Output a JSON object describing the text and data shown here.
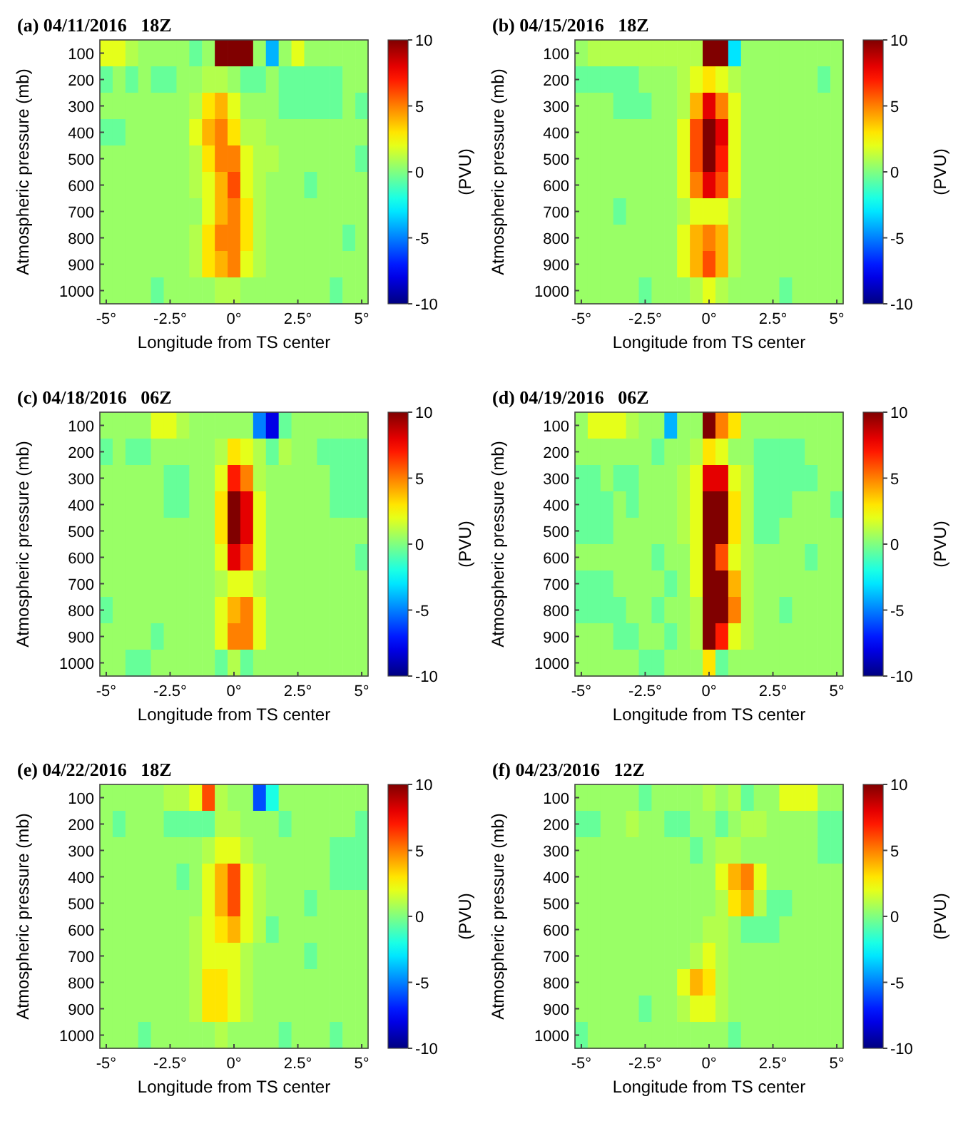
{
  "chart_data": [
    {
      "type": "heatmap",
      "title": "(a) 04/11/2016   18Z",
      "xlabel": "Longitude from TS center",
      "ylabel": "Atmospheric pressure (mb)",
      "clabel": "(PVU)",
      "clim": [
        -10,
        10
      ],
      "cticks": [
        -10,
        -5,
        0,
        5,
        10
      ],
      "categories": [
        "-5°",
        null,
        null,
        null,
        null,
        "-2.5°",
        null,
        null,
        null,
        null,
        "0°",
        null,
        null,
        null,
        null,
        "2.5°",
        null,
        null,
        null,
        null,
        "5°"
      ],
      "y_categories": [
        "100",
        "200",
        "300",
        "400",
        "500",
        "600",
        "700",
        "800",
        "900",
        "1000"
      ],
      "cells": [
        [
          2,
          2,
          1,
          0.5,
          0.5,
          0.5,
          0.5,
          -0.5,
          0.5,
          10,
          10,
          10,
          0.5,
          -4,
          0.5,
          2,
          0.5,
          0.5,
          0.5,
          0.5,
          0.5
        ],
        [
          -0.5,
          0.5,
          -0.5,
          0.5,
          -0.5,
          -0.5,
          0.5,
          0.5,
          1,
          1,
          0.5,
          -0.5,
          -0.5,
          0.5,
          -0.5,
          -0.5,
          -0.5,
          -0.5,
          -0.5,
          0.5,
          0.5
        ],
        [
          0.5,
          0.5,
          0.5,
          0.5,
          0.5,
          0.5,
          0.5,
          1,
          3,
          4,
          2,
          0.5,
          0.5,
          0.5,
          -0.5,
          -0.5,
          -0.5,
          -0.5,
          -0.5,
          0.5,
          -0.5
        ],
        [
          -0.5,
          -0.5,
          0.5,
          0.5,
          0.5,
          0.5,
          0.5,
          2,
          4,
          5,
          3,
          1,
          1,
          0.5,
          0.5,
          0.5,
          0.5,
          0.5,
          0.5,
          0.5,
          0.5
        ],
        [
          0.5,
          0.5,
          0.5,
          0.5,
          0.5,
          0.5,
          0.5,
          1,
          3,
          5,
          5,
          2,
          1,
          1,
          0.5,
          0.5,
          0.5,
          0.5,
          0.5,
          0.5,
          -0.5
        ],
        [
          0.5,
          0.5,
          0.5,
          0.5,
          0.5,
          0.5,
          0.5,
          1,
          2,
          4,
          6,
          2,
          1,
          0.5,
          0.5,
          0.5,
          -0.5,
          0.5,
          0.5,
          0.5,
          0.5
        ],
        [
          0.5,
          0.5,
          0.5,
          0.5,
          0.5,
          0.5,
          0.5,
          0.5,
          2,
          4,
          5,
          3,
          1,
          0.5,
          0.5,
          0.5,
          0.5,
          0.5,
          0.5,
          0.5,
          0.5
        ],
        [
          0.5,
          0.5,
          0.5,
          0.5,
          0.5,
          0.5,
          0.5,
          1,
          3,
          5,
          5,
          3,
          1,
          0.5,
          0.5,
          0.5,
          0.5,
          0.5,
          0.5,
          -0.5,
          0.5
        ],
        [
          0.5,
          0.5,
          0.5,
          0.5,
          0.5,
          0.5,
          0.5,
          1,
          3,
          4,
          5,
          2,
          1,
          0.5,
          0.5,
          0.5,
          0.5,
          0.5,
          0.5,
          0.5,
          0.5
        ],
        [
          0.5,
          0.5,
          0.5,
          0.5,
          -0.5,
          0.5,
          0.5,
          0.5,
          0.5,
          1,
          1,
          0.5,
          0.5,
          0.5,
          0.5,
          0.5,
          0.5,
          0.5,
          -0.5,
          0.5,
          0.5
        ]
      ]
    },
    {
      "type": "heatmap",
      "title": "(b) 04/15/2016   18Z",
      "xlabel": "Longitude from TS center",
      "ylabel": "Atmospheric pressure (mb)",
      "clabel": "(PVU)",
      "clim": [
        -10,
        10
      ],
      "cticks": [
        -10,
        -5,
        0,
        5,
        10
      ],
      "categories": [
        "-5°",
        null,
        null,
        null,
        null,
        "-2.5°",
        null,
        null,
        null,
        null,
        "0°",
        null,
        null,
        null,
        null,
        "2.5°",
        null,
        null,
        null,
        null,
        "5°"
      ],
      "y_categories": [
        "100",
        "200",
        "300",
        "400",
        "500",
        "600",
        "700",
        "800",
        "900",
        "1000"
      ],
      "cells": [
        [
          0.5,
          1,
          1,
          1,
          1,
          1,
          1,
          1,
          1,
          1,
          10,
          10,
          -3,
          0.5,
          0.5,
          0.5,
          0.5,
          0.5,
          0.5,
          0.5,
          0.5
        ],
        [
          -0.5,
          -0.5,
          -0.5,
          -0.5,
          -0.5,
          0.5,
          0.5,
          0.5,
          1,
          2,
          3,
          2,
          1,
          0.5,
          0.5,
          0.5,
          0.5,
          0.5,
          0.5,
          -0.5,
          0.5
        ],
        [
          0.5,
          0.5,
          0.5,
          -0.5,
          -0.5,
          -0.5,
          0.5,
          0.5,
          1,
          4,
          8,
          5,
          2,
          0.5,
          0.5,
          0.5,
          0.5,
          0.5,
          0.5,
          0.5,
          0.5
        ],
        [
          0.5,
          0.5,
          0.5,
          0.5,
          0.5,
          0.5,
          0.5,
          0.5,
          2,
          6,
          10,
          8,
          2,
          0.5,
          0.5,
          0.5,
          0.5,
          0.5,
          0.5,
          0.5,
          0.5
        ],
        [
          0.5,
          0.5,
          0.5,
          0.5,
          0.5,
          0.5,
          0.5,
          0.5,
          2,
          6,
          10,
          7,
          2,
          0.5,
          0.5,
          0.5,
          0.5,
          0.5,
          0.5,
          0.5,
          0.5
        ],
        [
          0.5,
          0.5,
          0.5,
          0.5,
          0.5,
          0.5,
          0.5,
          0.5,
          2,
          5,
          8,
          6,
          2,
          0.5,
          0.5,
          0.5,
          0.5,
          0.5,
          0.5,
          0.5,
          0.5
        ],
        [
          0.5,
          0.5,
          0.5,
          -0.5,
          0.5,
          0.5,
          0.5,
          0.5,
          1,
          2,
          2,
          2,
          1,
          0.5,
          0.5,
          0.5,
          0.5,
          0.5,
          0.5,
          0.5,
          0.5
        ],
        [
          0.5,
          0.5,
          0.5,
          0.5,
          0.5,
          0.5,
          0.5,
          0.5,
          2,
          4,
          5,
          4,
          1,
          0.5,
          0.5,
          0.5,
          0.5,
          0.5,
          0.5,
          0.5,
          0.5
        ],
        [
          0.5,
          0.5,
          0.5,
          0.5,
          0.5,
          0.5,
          0.5,
          0.5,
          2,
          4,
          6,
          4,
          1,
          0.5,
          0.5,
          0.5,
          0.5,
          0.5,
          0.5,
          0.5,
          0.5
        ],
        [
          0.5,
          0.5,
          0.5,
          0.5,
          0.5,
          -0.5,
          0.5,
          0.5,
          0.5,
          1,
          2,
          1,
          0.5,
          0.5,
          0.5,
          0.5,
          -0.5,
          0.5,
          0.5,
          0.5,
          0.5
        ]
      ]
    },
    {
      "type": "heatmap",
      "title": "(c) 04/18/2016   06Z",
      "xlabel": "Longitude from TS center",
      "ylabel": "Atmospheric pressure (mb)",
      "clabel": "(PVU)",
      "clim": [
        -10,
        10
      ],
      "cticks": [
        -10,
        -5,
        0,
        5,
        10
      ],
      "categories": [
        "-5°",
        null,
        null,
        null,
        null,
        "-2.5°",
        null,
        null,
        null,
        null,
        "0°",
        null,
        null,
        null,
        null,
        "2.5°",
        null,
        null,
        null,
        null,
        "5°"
      ],
      "y_categories": [
        "100",
        "200",
        "300",
        "400",
        "500",
        "600",
        "700",
        "800",
        "900",
        "1000"
      ],
      "cells": [
        [
          0.5,
          0.5,
          0.5,
          0.5,
          2,
          2,
          1,
          0.5,
          0.5,
          0.5,
          0.5,
          0.5,
          -5,
          -8,
          -0.5,
          0.5,
          0.5,
          0.5,
          0.5,
          0.5,
          0.5
        ],
        [
          -0.5,
          0.5,
          -0.5,
          -0.5,
          0.5,
          0.5,
          0.5,
          0.5,
          0.5,
          1,
          3,
          2,
          1,
          -0.5,
          1,
          0.5,
          0.5,
          -0.5,
          -0.5,
          -0.5,
          -0.5
        ],
        [
          0.5,
          0.5,
          0.5,
          0.5,
          0.5,
          -0.5,
          -0.5,
          0.5,
          0.5,
          2,
          7,
          5,
          1,
          0.5,
          0.5,
          0.5,
          0.5,
          0.5,
          -0.5,
          -0.5,
          -0.5
        ],
        [
          0.5,
          0.5,
          0.5,
          0.5,
          0.5,
          -0.5,
          -0.5,
          0.5,
          0.5,
          3,
          10,
          8,
          2,
          0.5,
          0.5,
          0.5,
          0.5,
          0.5,
          -0.5,
          -0.5,
          -0.5
        ],
        [
          0.5,
          0.5,
          0.5,
          0.5,
          0.5,
          0.5,
          0.5,
          0.5,
          0.5,
          3,
          10,
          8,
          2,
          0.5,
          0.5,
          0.5,
          0.5,
          0.5,
          0.5,
          0.5,
          0.5
        ],
        [
          0.5,
          0.5,
          0.5,
          0.5,
          0.5,
          0.5,
          0.5,
          0.5,
          0.5,
          2,
          8,
          6,
          2,
          0.5,
          0.5,
          0.5,
          0.5,
          0.5,
          0.5,
          0.5,
          -0.5
        ],
        [
          0.5,
          0.5,
          0.5,
          0.5,
          0.5,
          0.5,
          0.5,
          0.5,
          0.5,
          1,
          2,
          2,
          1,
          0.5,
          0.5,
          0.5,
          0.5,
          0.5,
          0.5,
          0.5,
          0.5
        ],
        [
          -0.5,
          0.5,
          0.5,
          0.5,
          0.5,
          0.5,
          0.5,
          0.5,
          0.5,
          2,
          4,
          5,
          2,
          0.5,
          0.5,
          0.5,
          0.5,
          0.5,
          0.5,
          0.5,
          0.5
        ],
        [
          0.5,
          0.5,
          0.5,
          0.5,
          -0.5,
          0.5,
          0.5,
          0.5,
          0.5,
          2,
          5,
          5,
          2,
          0.5,
          0.5,
          0.5,
          0.5,
          0.5,
          0.5,
          0.5,
          0.5
        ],
        [
          0.5,
          0.5,
          -0.5,
          -0.5,
          0.5,
          0.5,
          0.5,
          0.5,
          0.5,
          -0.5,
          1,
          -0.5,
          0.5,
          0.5,
          0.5,
          0.5,
          0.5,
          0.5,
          0.5,
          0.5,
          0.5
        ]
      ]
    },
    {
      "type": "heatmap",
      "title": "(d) 04/19/2016   06Z",
      "xlabel": "Longitude from TS center",
      "ylabel": "Atmospheric pressure (mb)",
      "clabel": "(PVU)",
      "clim": [
        -10,
        10
      ],
      "cticks": [
        -10,
        -5,
        0,
        5,
        10
      ],
      "categories": [
        "-5°",
        null,
        null,
        null,
        null,
        "-2.5°",
        null,
        null,
        null,
        null,
        "0°",
        null,
        null,
        null,
        null,
        "2.5°",
        null,
        null,
        null,
        null,
        "5°"
      ],
      "y_categories": [
        "100",
        "200",
        "300",
        "400",
        "500",
        "600",
        "700",
        "800",
        "900",
        "1000"
      ],
      "cells": [
        [
          0.5,
          2,
          2,
          2,
          1,
          0.5,
          0.5,
          -4,
          0.5,
          0.5,
          10,
          5,
          3,
          0.5,
          0.5,
          0.5,
          0.5,
          0.5,
          0.5,
          0.5,
          0.5
        ],
        [
          0.5,
          0.5,
          0.5,
          0.5,
          0.5,
          0.5,
          -0.5,
          0.5,
          0.5,
          1,
          3,
          2,
          0.5,
          0.5,
          -0.5,
          -0.5,
          -0.5,
          -0.5,
          0.5,
          0.5,
          0.5
        ],
        [
          -0.5,
          -0.5,
          0.5,
          -0.5,
          -0.5,
          0.5,
          0.5,
          0.5,
          1,
          2,
          8,
          8,
          2,
          1,
          -0.5,
          -0.5,
          -0.5,
          -0.5,
          -0.5,
          0.5,
          0.5
        ],
        [
          -0.5,
          -0.5,
          -0.5,
          0.5,
          -0.5,
          0.5,
          0.5,
          0.5,
          1,
          2,
          10,
          10,
          3,
          1,
          -0.5,
          -0.5,
          -0.5,
          0.5,
          0.5,
          0.5,
          -0.5
        ],
        [
          -0.5,
          -0.5,
          -0.5,
          0.5,
          0.5,
          0.5,
          0.5,
          0.5,
          1,
          2,
          10,
          10,
          3,
          1,
          -0.5,
          -0.5,
          0.5,
          0.5,
          0.5,
          0.5,
          0.5
        ],
        [
          0.5,
          0.5,
          0.5,
          0.5,
          0.5,
          0.5,
          -0.5,
          0.5,
          0.5,
          2,
          10,
          6,
          2,
          1,
          0.5,
          0.5,
          0.5,
          0.5,
          -0.5,
          0.5,
          0.5
        ],
        [
          -0.5,
          -0.5,
          -0.5,
          0.5,
          0.5,
          0.5,
          0.5,
          -0.5,
          0.5,
          2,
          10,
          10,
          4,
          1,
          0.5,
          0.5,
          0.5,
          0.5,
          0.5,
          0.5,
          0.5
        ],
        [
          -0.5,
          -0.5,
          -0.5,
          -0.5,
          0.5,
          0.5,
          -0.5,
          0.5,
          0.5,
          1,
          10,
          10,
          5,
          1,
          0.5,
          0.5,
          -0.5,
          0.5,
          0.5,
          0.5,
          0.5
        ],
        [
          0.5,
          0.5,
          0.5,
          -0.5,
          -0.5,
          0.5,
          0.5,
          -0.5,
          0.5,
          1,
          10,
          7,
          2,
          1,
          0.5,
          0.5,
          0.5,
          0.5,
          0.5,
          0.5,
          0.5
        ],
        [
          0.5,
          0.5,
          0.5,
          0.5,
          0.5,
          -0.5,
          -0.5,
          0.5,
          0.5,
          0.5,
          3,
          -0.5,
          0.5,
          0.5,
          0.5,
          0.5,
          0.5,
          0.5,
          0.5,
          0.5,
          0.5
        ]
      ]
    },
    {
      "type": "heatmap",
      "title": "(e) 04/22/2016   18Z",
      "xlabel": "Longitude from TS center",
      "ylabel": "Atmospheric pressure (mb)",
      "clabel": "(PVU)",
      "clim": [
        -10,
        10
      ],
      "cticks": [
        -10,
        -5,
        0,
        5,
        10
      ],
      "categories": [
        "-5°",
        null,
        null,
        null,
        null,
        "-2.5°",
        null,
        null,
        null,
        null,
        "0°",
        null,
        null,
        null,
        null,
        "2.5°",
        null,
        null,
        null,
        null,
        "5°"
      ],
      "y_categories": [
        "100",
        "200",
        "300",
        "400",
        "500",
        "600",
        "700",
        "800",
        "900",
        "1000"
      ],
      "cells": [
        [
          0.5,
          0.5,
          0.5,
          0.5,
          0.5,
          1,
          1,
          2,
          6,
          1,
          0.5,
          0.5,
          -6,
          -2,
          0.5,
          0.5,
          0.5,
          0.5,
          0.5,
          0.5,
          0.5
        ],
        [
          0.5,
          -0.5,
          0.5,
          0.5,
          0.5,
          -0.5,
          -0.5,
          -0.5,
          -0.5,
          1,
          1,
          0.5,
          0.5,
          0.5,
          -0.5,
          0.5,
          0.5,
          0.5,
          0.5,
          0.5,
          -0.5
        ],
        [
          0.5,
          0.5,
          0.5,
          0.5,
          0.5,
          0.5,
          0.5,
          0.5,
          1,
          2,
          2,
          1,
          0.5,
          0.5,
          0.5,
          0.5,
          0.5,
          0.5,
          -0.5,
          -0.5,
          -0.5
        ],
        [
          0.5,
          0.5,
          0.5,
          0.5,
          0.5,
          0.5,
          -0.5,
          0.5,
          2,
          4,
          6,
          2,
          1,
          0.5,
          0.5,
          0.5,
          0.5,
          0.5,
          -0.5,
          -0.5,
          -0.5
        ],
        [
          0.5,
          0.5,
          0.5,
          0.5,
          0.5,
          0.5,
          0.5,
          0.5,
          2,
          4,
          6,
          2,
          1,
          0.5,
          0.5,
          0.5,
          -0.5,
          0.5,
          0.5,
          0.5,
          0.5
        ],
        [
          0.5,
          0.5,
          0.5,
          0.5,
          0.5,
          0.5,
          0.5,
          1,
          2,
          3,
          4,
          2,
          1,
          -0.5,
          0.5,
          0.5,
          0.5,
          0.5,
          0.5,
          0.5,
          0.5
        ],
        [
          0.5,
          0.5,
          0.5,
          0.5,
          0.5,
          0.5,
          0.5,
          1,
          2,
          2,
          2,
          1,
          0.5,
          0.5,
          0.5,
          0.5,
          -0.5,
          0.5,
          0.5,
          0.5,
          0.5
        ],
        [
          0.5,
          0.5,
          0.5,
          0.5,
          0.5,
          0.5,
          0.5,
          1,
          3,
          3,
          2,
          1,
          0.5,
          0.5,
          0.5,
          0.5,
          0.5,
          0.5,
          0.5,
          0.5,
          0.5
        ],
        [
          0.5,
          0.5,
          0.5,
          0.5,
          0.5,
          0.5,
          0.5,
          1,
          3,
          3,
          2,
          1,
          0.5,
          0.5,
          0.5,
          0.5,
          0.5,
          0.5,
          0.5,
          0.5,
          0.5
        ],
        [
          0.5,
          0.5,
          0.5,
          -0.5,
          0.5,
          0.5,
          0.5,
          0.5,
          0.5,
          1,
          0.5,
          0.5,
          0.5,
          0.5,
          -0.5,
          0.5,
          0.5,
          0.5,
          -0.5,
          0.5,
          0.5
        ]
      ]
    },
    {
      "type": "heatmap",
      "title": "(f) 04/23/2016   12Z",
      "xlabel": "Longitude from TS center",
      "ylabel": "Atmospheric pressure (mb)",
      "clabel": "(PVU)",
      "clim": [
        -10,
        10
      ],
      "cticks": [
        -10,
        -5,
        0,
        5,
        10
      ],
      "categories": [
        "-5°",
        null,
        null,
        null,
        null,
        "-2.5°",
        null,
        null,
        null,
        null,
        "0°",
        null,
        null,
        null,
        null,
        "2.5°",
        null,
        null,
        null,
        null,
        "5°"
      ],
      "y_categories": [
        "100",
        "200",
        "300",
        "400",
        "500",
        "600",
        "700",
        "800",
        "900",
        "1000"
      ],
      "cells": [
        [
          0.5,
          0.5,
          0.5,
          0.5,
          0.5,
          -0.5,
          0.5,
          0.5,
          0.5,
          0.5,
          1,
          0.5,
          1,
          -0.5,
          0.5,
          0.5,
          2,
          2,
          2,
          0.5,
          0.5
        ],
        [
          -0.5,
          -0.5,
          0.5,
          0.5,
          1,
          0.5,
          0.5,
          -0.5,
          -0.5,
          0.5,
          0.5,
          -0.5,
          0.5,
          1,
          1,
          0.5,
          0.5,
          0.5,
          0.5,
          -0.5,
          -0.5
        ],
        [
          0.5,
          0.5,
          0.5,
          0.5,
          0.5,
          0.5,
          0.5,
          0.5,
          0.5,
          -0.5,
          0.5,
          1,
          1,
          0.5,
          0.5,
          0.5,
          0.5,
          0.5,
          0.5,
          -0.5,
          -0.5
        ],
        [
          0.5,
          0.5,
          0.5,
          0.5,
          0.5,
          0.5,
          0.5,
          0.5,
          0.5,
          0.5,
          0.5,
          2,
          4,
          5,
          2,
          0.5,
          0.5,
          0.5,
          0.5,
          0.5,
          0.5
        ],
        [
          0.5,
          0.5,
          0.5,
          0.5,
          0.5,
          0.5,
          0.5,
          0.5,
          0.5,
          0.5,
          0.5,
          1,
          3,
          4,
          1,
          -0.5,
          -0.5,
          0.5,
          0.5,
          0.5,
          0.5
        ],
        [
          0.5,
          0.5,
          0.5,
          0.5,
          0.5,
          0.5,
          0.5,
          0.5,
          0.5,
          0.5,
          1,
          1,
          0.5,
          -0.5,
          -0.5,
          -0.5,
          0.5,
          0.5,
          0.5,
          0.5,
          0.5
        ],
        [
          0.5,
          0.5,
          0.5,
          0.5,
          0.5,
          0.5,
          0.5,
          0.5,
          0.5,
          1,
          2,
          1,
          0.5,
          0.5,
          0.5,
          0.5,
          0.5,
          0.5,
          0.5,
          0.5,
          0.5
        ],
        [
          0.5,
          0.5,
          0.5,
          0.5,
          0.5,
          0.5,
          0.5,
          0.5,
          2,
          4,
          3,
          1,
          0.5,
          0.5,
          0.5,
          0.5,
          0.5,
          0.5,
          0.5,
          0.5,
          0.5
        ],
        [
          0.5,
          0.5,
          0.5,
          0.5,
          0.5,
          -0.5,
          0.5,
          0.5,
          1,
          2,
          2,
          1,
          0.5,
          0.5,
          0.5,
          0.5,
          0.5,
          0.5,
          0.5,
          0.5,
          0.5
        ],
        [
          -0.5,
          0.5,
          0.5,
          0.5,
          0.5,
          0.5,
          0.5,
          0.5,
          0.5,
          0.5,
          0.5,
          0.5,
          -0.5,
          0.5,
          0.5,
          0.5,
          0.5,
          0.5,
          0.5,
          0.5,
          0.5
        ]
      ]
    }
  ]
}
